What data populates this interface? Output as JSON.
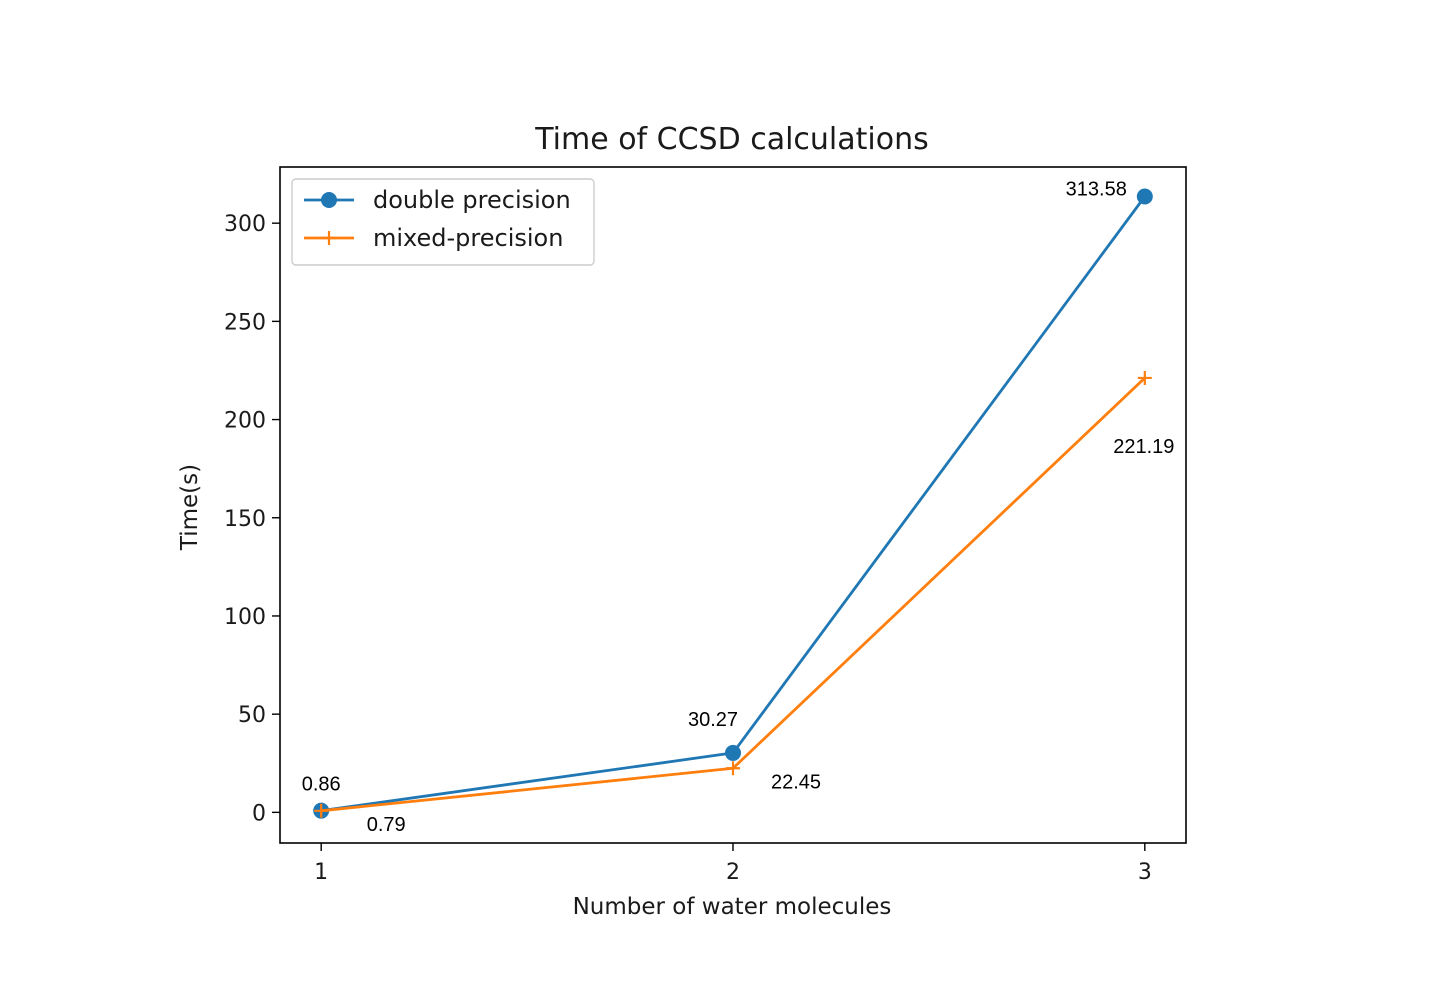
{
  "chart_data": {
    "type": "line",
    "title": "Time of CCSD calculations",
    "xlabel": "Number of water molecules",
    "ylabel": "Time(s)",
    "x": [
      1,
      2,
      3
    ],
    "xticks": [
      1,
      2,
      3
    ],
    "yticks": [
      0,
      50,
      100,
      150,
      200,
      250,
      300
    ],
    "xlim": [
      0.9,
      3.1
    ],
    "ylim": [
      -15.6,
      328.6
    ],
    "grid": false,
    "legend_position": "upper-left",
    "series": [
      {
        "name": "double precision",
        "values": [
          0.86,
          30.27,
          313.58
        ],
        "labels": [
          "0.86",
          "30.27",
          "313.58"
        ],
        "marker": "circle",
        "color": "#1f77b4"
      },
      {
        "name": "mixed-precision",
        "values": [
          0.79,
          22.45,
          221.19
        ],
        "labels": [
          "0.79",
          "22.45",
          "221.19"
        ],
        "marker": "plus",
        "color": "#ff7f0e"
      }
    ]
  }
}
